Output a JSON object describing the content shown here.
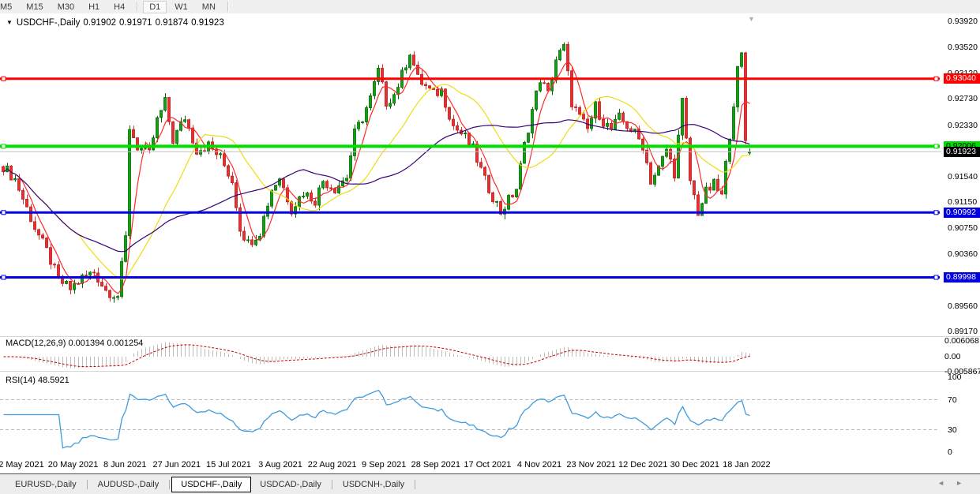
{
  "toolbar": {
    "timeframes": [
      "M5",
      "M15",
      "M30",
      "H1",
      "H4",
      "D1",
      "W1",
      "MN"
    ],
    "active_timeframe": "D1"
  },
  "chart_header": {
    "symbol": "USDCHF-,Daily",
    "open": "0.91902",
    "high": "0.91971",
    "low": "0.91874",
    "close": "0.91923"
  },
  "indicators": {
    "macd": {
      "label": "MACD(12,26,9)",
      "values": "0.001394 0.001254",
      "axis_labels": [
        "0.006068",
        "0.00",
        "-0.005867"
      ]
    },
    "rsi": {
      "label": "RSI(14)",
      "value": "48.5921",
      "axis_labels": [
        "100",
        "70",
        "30",
        "0"
      ]
    }
  },
  "tabs": {
    "items": [
      "EURUSD-,Daily",
      "AUDUSD-,Daily",
      "USDCHF-,Daily",
      "USDCAD-,Daily",
      "USDCNH-,Daily"
    ],
    "active": "USDCHF-,Daily"
  },
  "colors": {
    "background": "#FFFFFF",
    "toolbar_bg": "#F0F0F0",
    "up_candle": "#0CA30C",
    "up_candle_border": "#056805",
    "down_candle": "#E43030",
    "down_candle_border": "#C01818",
    "macd_histogram": "#BDBDBD",
    "macd_signal": "#CC0000",
    "rsi_line": "#3E9BDD",
    "level_dashed": "#BBBBBB",
    "text": "#000000"
  },
  "chart_data": {
    "type": "candlestick",
    "symbol": "USDCHF-",
    "timeframe": "Daily",
    "title": "USDCHF-,Daily 0.91902 0.91971 0.91874 0.91923",
    "y_range": [
      0.8917,
      0.9392
    ],
    "price_axis_ticks": [
      "0.93920",
      "0.93520",
      "0.93120",
      "0.92730",
      "0.92330",
      "0.91930",
      "0.91540",
      "0.91150",
      "0.90750",
      "0.90360",
      "0.89960",
      "0.89560",
      "0.89170"
    ],
    "time_ticks": [
      "2 May 2021",
      "20 May 2021",
      "8 Jun 2021",
      "27 Jun 2021",
      "15 Jul 2021",
      "3 Aug 2021",
      "22 Aug 2021",
      "9 Sep 2021",
      "28 Sep 2021",
      "17 Oct 2021",
      "4 Nov 2021",
      "23 Nov 2021",
      "12 Dec 2021",
      "30 Dec 2021",
      "18 Jan 2022"
    ],
    "last_bar": {
      "open": 0.91902,
      "high": 0.91971,
      "low": 0.91874,
      "close": 0.91923
    },
    "candle_count": 190,
    "close_path_anchors": [
      [
        0,
        0.917
      ],
      [
        3,
        0.915
      ],
      [
        8,
        0.9076
      ],
      [
        11,
        0.904
      ],
      [
        14,
        0.8996
      ],
      [
        17,
        0.8982
      ],
      [
        20,
        0.8999
      ],
      [
        23,
        0.9008
      ],
      [
        26,
        0.898
      ],
      [
        29,
        0.8972
      ],
      [
        31,
        0.906
      ],
      [
        32,
        0.923
      ],
      [
        34,
        0.92
      ],
      [
        37,
        0.9188
      ],
      [
        39,
        0.924
      ],
      [
        41,
        0.9268
      ],
      [
        43,
        0.921
      ],
      [
        46,
        0.9245
      ],
      [
        49,
        0.9195
      ],
      [
        52,
        0.9202
      ],
      [
        55,
        0.9183
      ],
      [
        58,
        0.9148
      ],
      [
        60,
        0.9076
      ],
      [
        62,
        0.9052
      ],
      [
        65,
        0.907
      ],
      [
        68,
        0.9135
      ],
      [
        70,
        0.9153
      ],
      [
        73,
        0.9105
      ],
      [
        76,
        0.913
      ],
      [
        79,
        0.9118
      ],
      [
        81,
        0.9148
      ],
      [
        84,
        0.9136
      ],
      [
        87,
        0.9154
      ],
      [
        89,
        0.922
      ],
      [
        91,
        0.9244
      ],
      [
        93,
        0.9274
      ],
      [
        95,
        0.9316
      ],
      [
        97,
        0.9268
      ],
      [
        99,
        0.928
      ],
      [
        101,
        0.931
      ],
      [
        103,
        0.9346
      ],
      [
        105,
        0.9304
      ],
      [
        107,
        0.9292
      ],
      [
        109,
        0.928
      ],
      [
        111,
        0.9286
      ],
      [
        114,
        0.9232
      ],
      [
        117,
        0.9214
      ],
      [
        119,
        0.9196
      ],
      [
        122,
        0.9148
      ],
      [
        124,
        0.9124
      ],
      [
        126,
        0.91
      ],
      [
        128,
        0.9118
      ],
      [
        130,
        0.9136
      ],
      [
        132,
        0.9202
      ],
      [
        134,
        0.9256
      ],
      [
        136,
        0.9304
      ],
      [
        138,
        0.928
      ],
      [
        140,
        0.9334
      ],
      [
        142,
        0.9352
      ],
      [
        144,
        0.9268
      ],
      [
        146,
        0.9244
      ],
      [
        148,
        0.9226
      ],
      [
        150,
        0.9262
      ],
      [
        152,
        0.9238
      ],
      [
        154,
        0.9226
      ],
      [
        156,
        0.9244
      ],
      [
        158,
        0.9232
      ],
      [
        160,
        0.922
      ],
      [
        162,
        0.9202
      ],
      [
        164,
        0.9148
      ],
      [
        166,
        0.9166
      ],
      [
        168,
        0.9196
      ],
      [
        170,
        0.916
      ],
      [
        172,
        0.9268
      ],
      [
        174,
        0.9148
      ],
      [
        176,
        0.91
      ],
      [
        178,
        0.913
      ],
      [
        180,
        0.9142
      ],
      [
        182,
        0.9124
      ],
      [
        184,
        0.922
      ],
      [
        186,
        0.9316
      ],
      [
        187,
        0.934
      ],
      [
        188,
        0.921
      ],
      [
        189,
        0.91923
      ]
    ],
    "noise_amplitude": 0.00085,
    "wick_amplitude": 0.0008,
    "moving_averages": [
      {
        "name": "fast",
        "window": 5,
        "color": "#FF2A2A"
      },
      {
        "name": "medium",
        "window": 20,
        "color": "#EDDC10"
      },
      {
        "name": "slow",
        "window": 45,
        "color": "#380078"
      }
    ],
    "macd": {
      "fast": 12,
      "slow": 26,
      "signal": 9,
      "main_value": 0.001394,
      "signal_value": 0.001254,
      "scale_max": 0.006068,
      "scale_min": -0.005867
    },
    "rsi": {
      "period": 14,
      "value": 48.5921,
      "levels": [
        70,
        30
      ],
      "scale": [
        0,
        100
      ]
    },
    "levels": {
      "hlines": [
        {
          "price": 0.9304,
          "label": "0.93040",
          "color": "#FF0000",
          "badge_text": "#FFFFFF",
          "thickness": 3
        },
        {
          "price": 0.92006,
          "label": "0.92006",
          "color": "#00DD00",
          "badge_text": "#000000",
          "thickness": 4
        },
        {
          "price": 0.90992,
          "label": "0.90992",
          "color": "#0000E0",
          "badge_text": "#FFFFFF",
          "thickness": 3
        },
        {
          "price": 0.89998,
          "label": "0.89998",
          "color": "#0000E0",
          "badge_text": "#FFFFFF",
          "thickness": 3
        }
      ],
      "current": {
        "price": 0.91923,
        "label": "0.91923",
        "line_color": "#C0C0C0",
        "badge_bg": "#000000",
        "badge_text": "#FFFFFF"
      }
    }
  }
}
